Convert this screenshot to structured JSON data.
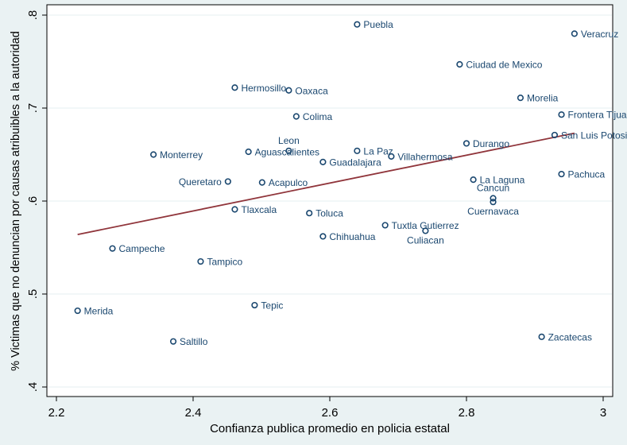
{
  "chart_data": {
    "type": "scatter",
    "title": "",
    "xlabel": "Confianza publica promedio en policia estatal",
    "ylabel": "% Victimas que no denuncian por causas atribuibles a la autoridad",
    "xlim": [
      2.2,
      3.0
    ],
    "ylim": [
      0.4,
      0.8
    ],
    "xticks": [
      2.2,
      2.4,
      2.6,
      2.8,
      3.0
    ],
    "xtick_labels": [
      "2.2",
      "2.4",
      "2.6",
      "2.8",
      "3"
    ],
    "yticks": [
      0.4,
      0.5,
      0.6,
      0.7,
      0.8
    ],
    "ytick_labels": [
      ".4",
      ".5",
      ".6",
      ".7",
      ".8"
    ],
    "grid": "horizontal",
    "marker_color": "#1a476f",
    "fit_color": "#90353b",
    "points": [
      {
        "label": "Puebla",
        "x": 2.64,
        "y": 0.79
      },
      {
        "label": "Veracruz",
        "x": 2.958,
        "y": 0.78
      },
      {
        "label": "Ciudad de Mexico",
        "x": 2.79,
        "y": 0.747
      },
      {
        "label": "Hermosillo",
        "x": 2.461,
        "y": 0.722
      },
      {
        "label": "Oaxaca",
        "x": 2.54,
        "y": 0.719
      },
      {
        "label": "Morelia",
        "x": 2.879,
        "y": 0.711
      },
      {
        "label": "Frontera Tijuana",
        "x": 2.939,
        "y": 0.693
      },
      {
        "label": "Colima",
        "x": 2.551,
        "y": 0.691
      },
      {
        "label": "San Luis Potosi",
        "x": 2.929,
        "y": 0.671
      },
      {
        "label": "Durango",
        "x": 2.8,
        "y": 0.662
      },
      {
        "label": "Monterrey",
        "x": 2.342,
        "y": 0.65
      },
      {
        "label": "Aguascalientes",
        "x": 2.481,
        "y": 0.653
      },
      {
        "label": "Leon",
        "x": 2.54,
        "y": 0.654
      },
      {
        "label": "La Paz",
        "x": 2.64,
        "y": 0.654
      },
      {
        "label": "Villahermosa",
        "x": 2.69,
        "y": 0.648
      },
      {
        "label": "Guadalajara",
        "x": 2.59,
        "y": 0.642
      },
      {
        "label": "Pachuca",
        "x": 2.939,
        "y": 0.629
      },
      {
        "label": "La Laguna",
        "x": 2.81,
        "y": 0.623
      },
      {
        "label": "Queretaro",
        "x": 2.451,
        "y": 0.621
      },
      {
        "label": "Acapulco",
        "x": 2.501,
        "y": 0.62
      },
      {
        "label": "Cancun",
        "x": 2.839,
        "y": 0.603
      },
      {
        "label": "Cuernavaca",
        "x": 2.839,
        "y": 0.599
      },
      {
        "label": "Tlaxcala",
        "x": 2.461,
        "y": 0.591
      },
      {
        "label": "Toluca",
        "x": 2.57,
        "y": 0.587
      },
      {
        "label": "Tuxtla Gutierrez",
        "x": 2.681,
        "y": 0.574
      },
      {
        "label": "Culiacan",
        "x": 2.74,
        "y": 0.568
      },
      {
        "label": "Chihuahua",
        "x": 2.59,
        "y": 0.562
      },
      {
        "label": "Campeche",
        "x": 2.282,
        "y": 0.549
      },
      {
        "label": "Tampico",
        "x": 2.411,
        "y": 0.535
      },
      {
        "label": "Tepic",
        "x": 2.49,
        "y": 0.488
      },
      {
        "label": "Merida",
        "x": 2.231,
        "y": 0.482
      },
      {
        "label": "Saltillo",
        "x": 2.371,
        "y": 0.449
      },
      {
        "label": "Zacatecas",
        "x": 2.91,
        "y": 0.454
      }
    ],
    "fit_line": {
      "x": [
        2.231,
        2.958
      ],
      "y": [
        0.564,
        0.673
      ]
    }
  }
}
